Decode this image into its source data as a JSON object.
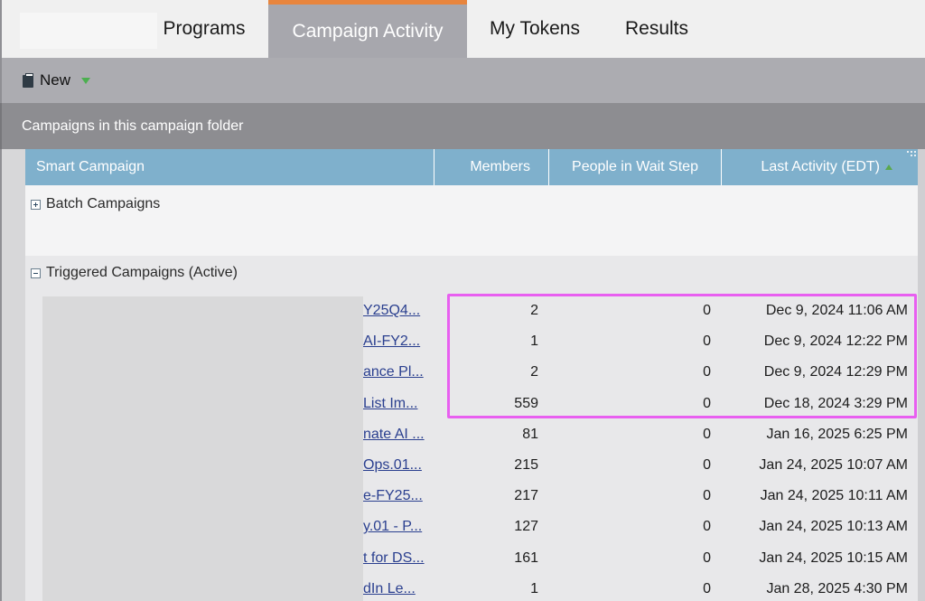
{
  "tabs": [
    {
      "label": "Programs",
      "active": false
    },
    {
      "label": "Campaign Activity",
      "active": true
    },
    {
      "label": "My Tokens",
      "active": false
    },
    {
      "label": "Results",
      "active": false
    }
  ],
  "toolbar": {
    "new_label": "New"
  },
  "section": {
    "title": "Campaigns in this campaign folder"
  },
  "columns": {
    "smart_campaign": "Smart Campaign",
    "members": "Members",
    "wait_step": "People in Wait Step",
    "last_activity": "Last Activity (EDT)"
  },
  "groups": {
    "batch": {
      "label": "Batch Campaigns",
      "expanded": false
    },
    "triggered": {
      "label": "Triggered Campaigns (Active)",
      "expanded": true
    }
  },
  "rows": [
    {
      "name": "Y25Q4...",
      "members": "2",
      "wait": "0",
      "last": "Dec 9, 2024 11:06 AM"
    },
    {
      "name": "AI-FY2...",
      "members": "1",
      "wait": "0",
      "last": "Dec 9, 2024 12:22 PM"
    },
    {
      "name": "ance Pl...",
      "members": "2",
      "wait": "0",
      "last": "Dec 9, 2024 12:29 PM"
    },
    {
      "name": "List Im...",
      "members": "559",
      "wait": "0",
      "last": "Dec 18, 2024 3:29 PM"
    },
    {
      "name": "nate AI ...",
      "members": "81",
      "wait": "0",
      "last": "Jan 16, 2025 6:25 PM"
    },
    {
      "name": "Ops.01...",
      "members": "215",
      "wait": "0",
      "last": "Jan 24, 2025 10:07 AM"
    },
    {
      "name": "e-FY25...",
      "members": "217",
      "wait": "0",
      "last": "Jan 24, 2025 10:11 AM"
    },
    {
      "name": "y.01 - P...",
      "members": "127",
      "wait": "0",
      "last": "Jan 24, 2025 10:13 AM"
    },
    {
      "name": "t for DS...",
      "members": "161",
      "wait": "0",
      "last": "Jan 24, 2025 10:15 AM"
    },
    {
      "name": "dIn Le...",
      "members": "1",
      "wait": "0",
      "last": "Jan 28, 2025 4:30 PM"
    }
  ],
  "colors": {
    "accent_tab": "#e8853d",
    "header_blue": "#7fb0cc",
    "highlight": "#e85ff0",
    "link": "#2a3f8f"
  }
}
